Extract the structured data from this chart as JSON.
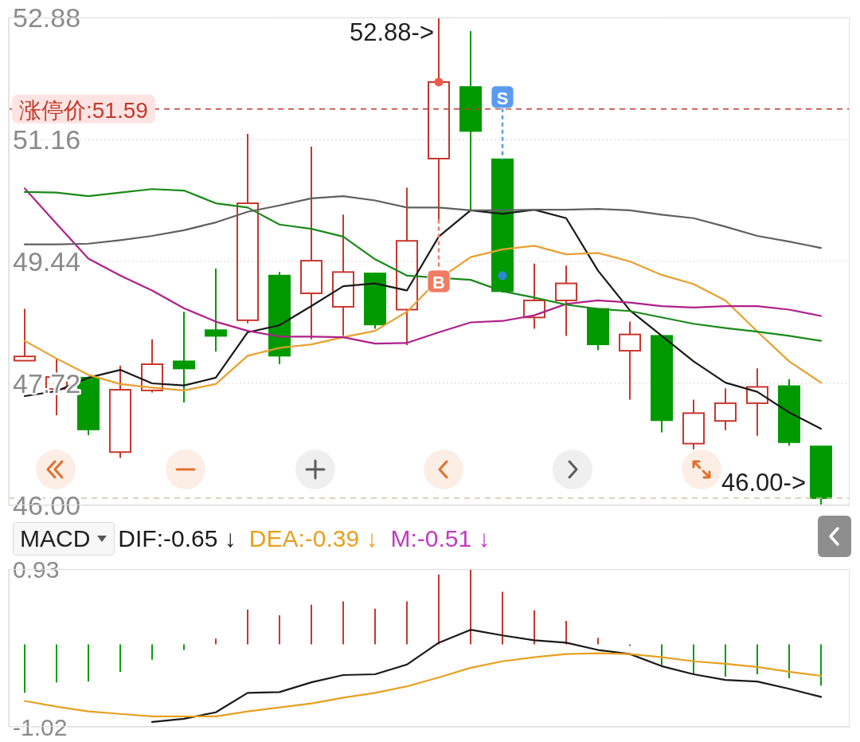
{
  "chart_data": [
    {
      "type": "candlestick",
      "categories": [
        null,
        null,
        null,
        null,
        null,
        null,
        null,
        null,
        null,
        null,
        null,
        null,
        null,
        null,
        null,
        null,
        null,
        null,
        null,
        null,
        null,
        null,
        null,
        null,
        null,
        null
      ],
      "ohlc": [
        [
          48.04,
          48.77,
          48.04,
          48.1
        ],
        [
          47.64,
          48.06,
          47.27,
          47.81
        ],
        [
          47.8,
          47.8,
          46.99,
          47.07
        ],
        [
          46.75,
          47.97,
          46.67,
          47.63
        ],
        [
          47.62,
          48.34,
          47.59,
          47.99
        ],
        [
          48.03,
          48.73,
          47.45,
          47.93
        ],
        [
          48.47,
          49.34,
          48.17,
          48.39
        ],
        [
          48.61,
          51.24,
          48.57,
          50.26
        ],
        [
          49.24,
          49.29,
          47.99,
          48.11
        ],
        [
          48.99,
          51.06,
          48.34,
          49.45
        ],
        [
          48.8,
          50.1,
          48.39,
          49.29
        ],
        [
          49.27,
          49.28,
          48.49,
          48.55
        ],
        [
          48.76,
          50.48,
          48.26,
          49.73
        ],
        [
          50.89,
          52.88,
          50.03,
          51.97
        ],
        [
          51.9,
          52.69,
          50.17,
          51.28
        ],
        [
          50.88,
          50.88,
          49.0,
          49.02
        ],
        [
          48.65,
          49.41,
          48.49,
          48.89
        ],
        [
          48.89,
          49.38,
          48.39,
          49.13
        ],
        [
          48.77,
          48.77,
          48.19,
          48.27
        ],
        [
          48.18,
          48.59,
          47.49,
          48.41
        ],
        [
          48.39,
          48.39,
          47.03,
          47.2
        ],
        [
          46.87,
          47.49,
          46.79,
          47.3
        ],
        [
          47.19,
          47.65,
          47.06,
          47.44
        ],
        [
          47.44,
          47.93,
          46.98,
          47.67
        ],
        [
          47.68,
          47.78,
          46.84,
          46.89
        ],
        [
          46.83,
          46.83,
          46,
          46.1
        ]
      ],
      "colors": [
        "#c8372d",
        "#c8372d",
        "#009a00",
        "#c8372d",
        "#c8372d",
        "#009a00",
        "#009a00",
        "#c8372d",
        "#009a00",
        "#c8372d",
        "#c8372d",
        "#009a00",
        "#c8372d",
        "#c8372d",
        "#009a00",
        "#009a00",
        "#c8372d",
        "#c8372d",
        "#009a00",
        "#c8372d",
        "#009a00",
        "#c8372d",
        "#c8372d",
        "#c8372d",
        "#009a00",
        "#009a00"
      ],
      "series": [
        {
          "type": "line",
          "color": "#1a1a1a",
          "values": [
            47.54,
            47.61,
            47.8,
            47.91,
            47.72,
            47.69,
            47.8,
            48.44,
            48.54,
            48.81,
            49.09,
            49.13,
            49.03,
            49.79,
            50.16,
            50.11,
            50.17,
            50.05,
            49.31,
            48.75,
            48.39,
            48.03,
            47.73,
            47.6,
            47.31,
            47.08
          ]
        },
        {
          "type": "line",
          "color": "#e8a030",
          "values": [
            48.32,
            48.07,
            47.84,
            47.71,
            47.66,
            47.62,
            47.71,
            48.11,
            48.22,
            48.27,
            48.37,
            48.46,
            48.73,
            49.19,
            49.5,
            49.61,
            49.66,
            49.54,
            49.56,
            49.44,
            49.25,
            49.12,
            48.89,
            48.45,
            48.03,
            47.73
          ]
        },
        {
          "type": "line",
          "color": "#b0208a",
          "values": [
            50.47,
            49.97,
            49.48,
            49.24,
            49.03,
            48.78,
            48.59,
            48.46,
            48.38,
            48.38,
            48.37,
            48.28,
            48.29,
            48.44,
            48.58,
            48.6,
            48.68,
            48.84,
            48.89,
            48.86,
            48.81,
            48.79,
            48.81,
            48.81,
            48.76,
            48.67
          ]
        },
        {
          "type": "line",
          "color": "#1a8a1a",
          "values": [
            50.42,
            50.41,
            50.36,
            50.41,
            50.46,
            50.44,
            50.26,
            50.2,
            49.96,
            49.9,
            49.79,
            49.47,
            49.24,
            null,
            49.18,
            49.02,
            48.93,
            48.83,
            48.77,
            48.74,
            48.65,
            48.56,
            48.5,
            48.45,
            48.39,
            48.32
          ]
        },
        {
          "type": "line",
          "color": "#606060",
          "values": [
            49.68,
            49.68,
            49.69,
            49.74,
            49.8,
            49.88,
            49.99,
            50.14,
            50.23,
            50.33,
            50.36,
            50.3,
            50.2,
            50.2,
            50.16,
            50.16,
            50.17,
            50.17,
            50.18,
            50.16,
            50.1,
            50.05,
            49.93,
            49.8,
            49.72,
            49.63
          ]
        },
        {
          "type": "scatter",
          "marker": "square",
          "color": "#f07c64",
          "values": [
            null,
            null,
            null,
            null,
            null,
            null,
            null,
            null,
            null,
            null,
            null,
            null,
            null,
            49.16,
            null,
            null,
            null,
            null,
            null,
            null,
            null,
            null,
            null,
            null,
            null,
            null
          ],
          "value_labels": [
            null,
            null,
            null,
            null,
            null,
            null,
            null,
            null,
            null,
            null,
            null,
            null,
            null,
            "B",
            null,
            null,
            null,
            null,
            null,
            null,
            null,
            null,
            null,
            null,
            null,
            null
          ]
        },
        {
          "type": "scatter",
          "marker": "square",
          "color": "#5b9cf0",
          "values": [
            null,
            null,
            null,
            null,
            null,
            null,
            null,
            null,
            null,
            null,
            null,
            null,
            null,
            null,
            null,
            51.76,
            null,
            null,
            null,
            null,
            null,
            null,
            null,
            null,
            null,
            null
          ],
          "value_labels": [
            null,
            null,
            null,
            null,
            null,
            null,
            null,
            null,
            null,
            null,
            null,
            null,
            null,
            null,
            null,
            "S",
            null,
            null,
            null,
            null,
            null,
            null,
            null,
            null,
            null,
            null
          ]
        },
        {
          "type": "scatter",
          "marker": "circle",
          "color": "#f25a4a",
          "values": [
            null,
            null,
            null,
            null,
            null,
            null,
            null,
            null,
            null,
            null,
            null,
            null,
            null,
            51.97,
            null,
            null,
            null,
            null,
            null,
            null,
            null,
            null,
            null,
            null,
            null,
            null
          ]
        },
        {
          "type": "scatter",
          "marker": "circle",
          "color": "#2a88d8",
          "values": [
            null,
            null,
            null,
            null,
            null,
            null,
            null,
            null,
            null,
            null,
            null,
            null,
            null,
            null,
            null,
            49.24,
            null,
            null,
            null,
            null,
            null,
            null,
            null,
            null,
            null,
            null
          ]
        }
      ],
      "ylim": [
        46,
        52.88
      ],
      "yticks": [
        52.88,
        51.16,
        49.44,
        47.72,
        {
          "value": 46,
          "label": "46.00"
        }
      ],
      "grid": "y",
      "ref_lines": [
        {
          "axis": "y",
          "value": 51.59,
          "label": "涨停价:51.59",
          "color": "#c0392b",
          "line_style": "dashed"
        },
        {
          "axis": "y",
          "value": 46.1,
          "color": "#d5c4a1",
          "line_style": "dashed"
        }
      ],
      "annotations": [
        "52.88->",
        "46.00->"
      ]
    },
    {
      "type": "line",
      "categories": [
        null,
        null,
        null,
        null,
        null,
        null,
        null,
        null,
        null,
        null,
        null,
        null,
        null,
        null,
        null,
        null,
        null,
        null,
        null,
        null,
        null,
        null,
        null,
        null,
        null,
        null
      ],
      "series": [
        {
          "name": "DIF:-0.65 ↓",
          "type": "line",
          "color": "#1a1a1a",
          "values": [
            null,
            null,
            null,
            null,
            -0.96,
            -0.92,
            -0.84,
            -0.6,
            -0.59,
            -0.47,
            -0.38,
            -0.37,
            -0.25,
            0.02,
            0.18,
            0.11,
            0.05,
            0.02,
            -0.07,
            -0.12,
            -0.27,
            -0.37,
            -0.44,
            -0.46,
            -0.55,
            -0.65
          ]
        },
        {
          "name": "DEA:-0.39 ↓",
          "type": "line",
          "color": "#e8a020",
          "values": [
            -0.7,
            -0.77,
            -0.83,
            -0.86,
            -0.89,
            -0.89,
            -0.89,
            -0.83,
            -0.78,
            -0.73,
            -0.66,
            -0.6,
            -0.52,
            -0.41,
            -0.29,
            -0.21,
            -0.16,
            -0.12,
            -0.11,
            -0.12,
            -0.16,
            -0.21,
            -0.24,
            -0.28,
            -0.34,
            -0.39
          ]
        },
        {
          "name": "M:-0.51 ↓",
          "type": "bar",
          "color": "#c03cc0",
          "colors": [
            "#109a10",
            "#109a10",
            "#109a10",
            "#109a10",
            "#109a10",
            "#109a10",
            "#c8372d",
            "#c8372d",
            "#c8372d",
            "#c8372d",
            "#c8372d",
            "#c8372d",
            "#c8372d",
            "#c8372d",
            "#c8372d",
            "#c8372d",
            "#c8372d",
            "#c8372d",
            "#c8372d",
            "#109a10",
            "#109a10",
            "#109a10",
            "#109a10",
            "#109a10",
            "#109a10",
            "#109a10"
          ],
          "values": [
            -0.6,
            -0.47,
            -0.46,
            -0.34,
            -0.19,
            -0.07,
            0.07,
            0.43,
            0.36,
            0.49,
            0.53,
            0.44,
            0.53,
            0.86,
            0.93,
            0.65,
            0.42,
            0.29,
            0.08,
            -0.02,
            -0.26,
            -0.37,
            -0.4,
            -0.37,
            -0.42,
            -0.51
          ]
        }
      ],
      "ylim": [
        -1.02,
        0.93
      ],
      "yticks": [
        0.93,
        -1.02
      ],
      "legend": "top left",
      "legend_title": "MACD"
    }
  ]
}
